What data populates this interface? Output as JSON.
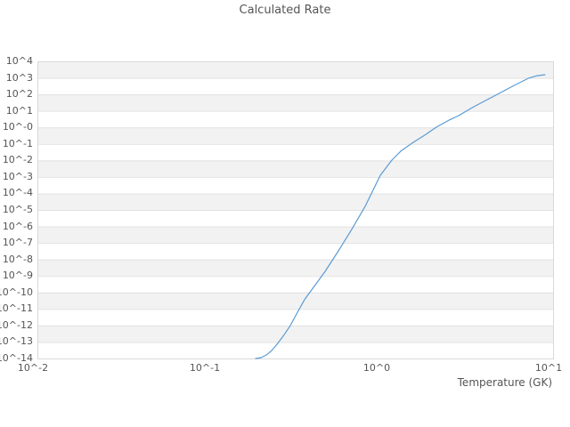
{
  "title": "Calculated Rate",
  "chart_data": {
    "type": "line",
    "title": "Calculated Rate",
    "xlabel": "Temperature (GK)",
    "ylabel": "",
    "x_scale": "log",
    "y_scale": "log",
    "xlim_log10": [
      -2,
      1
    ],
    "ylim_log10": [
      -14,
      4
    ],
    "x_tick_log10": [
      -2,
      -1,
      0,
      1
    ],
    "x_tick_labels": [
      "10^-2",
      "10^-1",
      "10^0",
      "10^1"
    ],
    "y_tick_log10": [
      4,
      3,
      2,
      1,
      0,
      -1,
      -2,
      -3,
      -4,
      -5,
      -6,
      -7,
      -8,
      -9,
      -10,
      -11,
      -12,
      -13,
      -14
    ],
    "y_tick_labels": [
      "10^4",
      "10^3",
      "10^2",
      "10^1",
      "10^-0",
      "10^-1",
      "10^-2",
      "10^-3",
      "10^-4",
      "10^-5",
      "10^-6",
      "10^-7",
      "10^-8",
      "10^-9",
      "10^-10",
      "10^-11",
      "10^-12",
      "10^-13",
      "10^-14"
    ],
    "grid": "alternating-horizontal-bands",
    "legend": "none",
    "colors": {
      "background": "#ffffff",
      "band": "#f2f2f2",
      "gridline": "#e2e2e2",
      "border": "#d9d9d9",
      "text": "#555555",
      "line": "#5b9bd5"
    },
    "series": [
      {
        "name": "calculated rate",
        "color": "#5b9bd5",
        "x_temperature_gk": [
          0.186,
          0.2,
          0.215,
          0.231,
          0.248,
          0.269,
          0.296,
          0.326,
          0.358,
          0.404,
          0.472,
          0.564,
          0.674,
          0.807,
          0.989,
          1.154,
          1.3,
          1.54,
          1.795,
          2.09,
          2.48,
          2.82,
          3.46,
          4.14,
          4.95,
          5.92,
          7.16,
          8.07,
          8.97
        ],
        "y_log10_rate": [
          -14.0,
          -13.95,
          -13.78,
          -13.51,
          -13.13,
          -12.65,
          -12.0,
          -11.19,
          -10.44,
          -9.69,
          -8.72,
          -7.48,
          -6.18,
          -4.78,
          -2.9,
          -1.98,
          -1.44,
          -0.9,
          -0.47,
          0.01,
          0.44,
          0.71,
          1.25,
          1.68,
          2.11,
          2.54,
          2.97,
          3.13,
          3.19
        ]
      }
    ]
  }
}
